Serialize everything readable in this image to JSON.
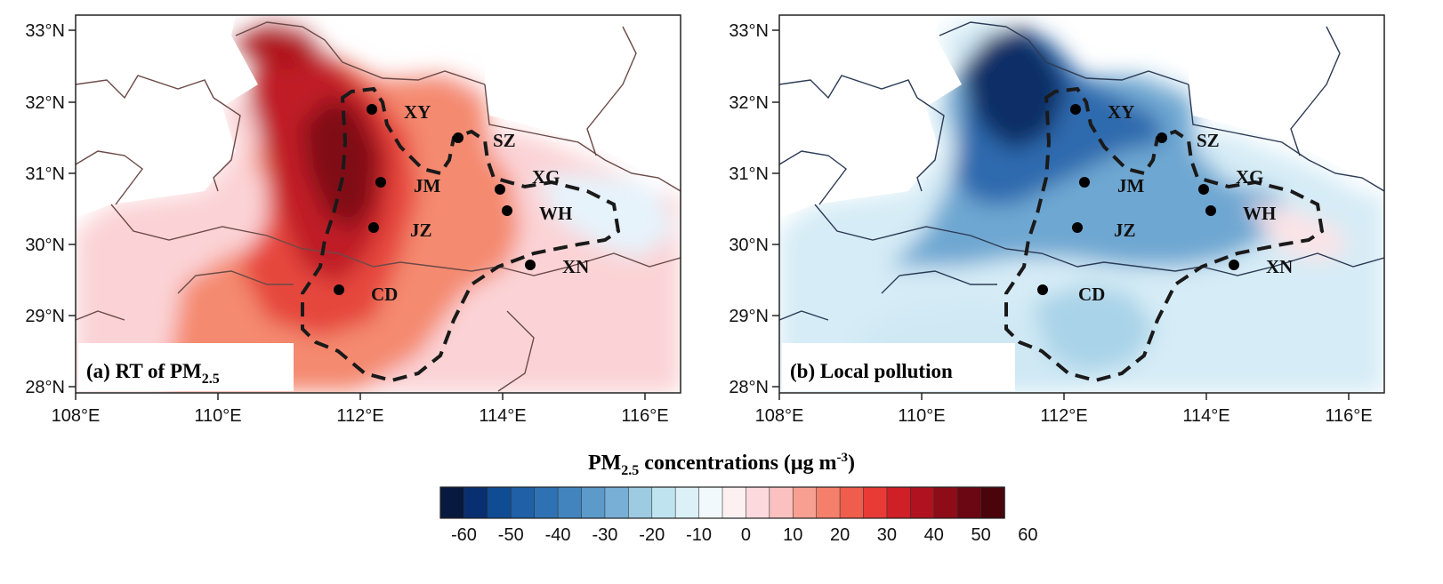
{
  "panels": [
    {
      "id": "a",
      "title": "(a) RT of PM",
      "title_subscript": "2.5",
      "scheme": "red"
    },
    {
      "id": "b",
      "title": "(b) Local pollution",
      "title_subscript": "",
      "scheme": "blue"
    }
  ],
  "latitude_ticks": [
    "33°N",
    "32°N",
    "31°N",
    "30°N",
    "29°N",
    "28°N"
  ],
  "longitude_ticks": [
    "108°E",
    "110°E",
    "112°E",
    "114°E",
    "116°E"
  ],
  "cities": [
    "XY",
    "SZ",
    "XG",
    "JM",
    "WH",
    "JZ",
    "XN",
    "CD"
  ],
  "colorbar": {
    "title_main": "PM",
    "title_sub": "2.5",
    "title_rest": " concentrations (μg m",
    "title_sup": "-3",
    "title_end": ")",
    "ticks": [
      "-60",
      "-50",
      "-40",
      "-30",
      "-20",
      "-10",
      "0",
      "10",
      "20",
      "30",
      "40",
      "50",
      "60"
    ],
    "colors": [
      "#08193f",
      "#0a2f70",
      "#104c93",
      "#1f60a6",
      "#2f72b3",
      "#4285be",
      "#5b9ac9",
      "#78afd6",
      "#9ccbe2",
      "#bfe3ef",
      "#dcf1f7",
      "#f2f9fc",
      "#fdf0f1",
      "#fcd9dd",
      "#fac1c0",
      "#f7a092",
      "#f4806b",
      "#ef5d4c",
      "#e83b35",
      "#cf1f27",
      "#b0131f",
      "#8e0c18",
      "#6a0712",
      "#4a040c"
    ]
  }
}
